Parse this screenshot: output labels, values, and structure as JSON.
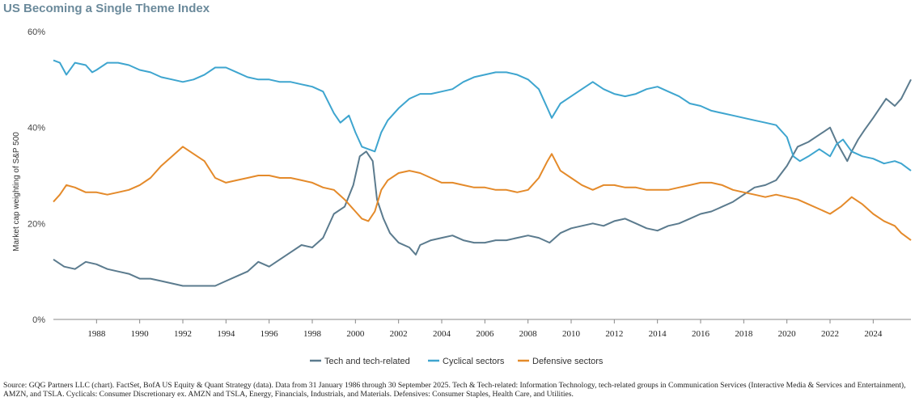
{
  "title": "US Becoming a Single Theme Index",
  "source": "Source: GQG Partners LLC (chart). FactSet, BofA US Equity & Quant Strategy (data). Data from 31 January 1986 through 30 September 2025. Tech & Tech-related: Information Technology, tech-related groups in Communication Services (Interactive Media & Services and Entertainment), AMZN, and TSLA. Cyclicals: Consumer Discretionary ex. AMZN and TSLA, Energy, Financials, Industrials, and Materials. Defensives: Consumer Staples, Health Care, and Utilities.",
  "chart_data": {
    "type": "line",
    "title": "US Becoming a Single Theme Index",
    "ylabel": "Market cap weighting of S&P 500",
    "xlabel": "",
    "ylim": [
      0,
      60
    ],
    "xlim": [
      1986.0,
      2025.75
    ],
    "yticks": [
      "0%",
      "20%",
      "40%",
      "60%"
    ],
    "ytick_values": [
      0,
      20,
      40,
      60
    ],
    "xticks": [
      "1988",
      "1990",
      "1992",
      "1994",
      "1996",
      "1998",
      "2000",
      "2002",
      "2004",
      "2006",
      "2008",
      "2010",
      "2012",
      "2014",
      "2016",
      "2018",
      "2020",
      "2022",
      "2024"
    ],
    "xtick_values": [
      1988,
      1990,
      1992,
      1994,
      1996,
      1998,
      2000,
      2002,
      2004,
      2006,
      2008,
      2010,
      2012,
      2014,
      2016,
      2018,
      2020,
      2022,
      2024
    ],
    "grid": false,
    "legend_position": "bottom-center",
    "series": [
      {
        "name": "Tech and tech-related",
        "color": "#5b7b8e",
        "points": [
          [
            1986.0,
            12.5
          ],
          [
            1986.5,
            11.0
          ],
          [
            1987.0,
            10.5
          ],
          [
            1987.5,
            12.0
          ],
          [
            1988.0,
            11.5
          ],
          [
            1988.5,
            10.5
          ],
          [
            1989.0,
            10.0
          ],
          [
            1989.5,
            9.5
          ],
          [
            1990.0,
            8.5
          ],
          [
            1990.5,
            8.5
          ],
          [
            1991.0,
            8.0
          ],
          [
            1991.5,
            7.5
          ],
          [
            1992.0,
            7.0
          ],
          [
            1992.5,
            7.0
          ],
          [
            1993.0,
            7.0
          ],
          [
            1993.5,
            7.0
          ],
          [
            1994.0,
            8.0
          ],
          [
            1994.5,
            9.0
          ],
          [
            1995.0,
            10.0
          ],
          [
            1995.5,
            12.0
          ],
          [
            1996.0,
            11.0
          ],
          [
            1996.5,
            12.5
          ],
          [
            1997.0,
            14.0
          ],
          [
            1997.5,
            15.5
          ],
          [
            1998.0,
            15.0
          ],
          [
            1998.5,
            17.0
          ],
          [
            1999.0,
            22.0
          ],
          [
            1999.5,
            23.5
          ],
          [
            1999.9,
            28.0
          ],
          [
            2000.2,
            34.0
          ],
          [
            2000.5,
            35.0
          ],
          [
            2000.8,
            33.0
          ],
          [
            2001.0,
            25.0
          ],
          [
            2001.3,
            21.0
          ],
          [
            2001.6,
            18.0
          ],
          [
            2002.0,
            16.0
          ],
          [
            2002.5,
            15.0
          ],
          [
            2002.8,
            13.5
          ],
          [
            2003.0,
            15.5
          ],
          [
            2003.5,
            16.5
          ],
          [
            2004.0,
            17.0
          ],
          [
            2004.5,
            17.5
          ],
          [
            2005.0,
            16.5
          ],
          [
            2005.5,
            16.0
          ],
          [
            2006.0,
            16.0
          ],
          [
            2006.5,
            16.5
          ],
          [
            2007.0,
            16.5
          ],
          [
            2007.5,
            17.0
          ],
          [
            2008.0,
            17.5
          ],
          [
            2008.5,
            17.0
          ],
          [
            2009.0,
            16.0
          ],
          [
            2009.5,
            18.0
          ],
          [
            2010.0,
            19.0
          ],
          [
            2010.5,
            19.5
          ],
          [
            2011.0,
            20.0
          ],
          [
            2011.5,
            19.5
          ],
          [
            2012.0,
            20.5
          ],
          [
            2012.5,
            21.0
          ],
          [
            2013.0,
            20.0
          ],
          [
            2013.5,
            19.0
          ],
          [
            2014.0,
            18.5
          ],
          [
            2014.5,
            19.5
          ],
          [
            2015.0,
            20.0
          ],
          [
            2015.5,
            21.0
          ],
          [
            2016.0,
            22.0
          ],
          [
            2016.5,
            22.5
          ],
          [
            2017.0,
            23.5
          ],
          [
            2017.5,
            24.5
          ],
          [
            2018.0,
            26.0
          ],
          [
            2018.5,
            27.5
          ],
          [
            2019.0,
            28.0
          ],
          [
            2019.5,
            29.0
          ],
          [
            2020.0,
            32.0
          ],
          [
            2020.5,
            36.0
          ],
          [
            2021.0,
            37.0
          ],
          [
            2021.5,
            38.5
          ],
          [
            2022.0,
            40.0
          ],
          [
            2022.3,
            37.0
          ],
          [
            2022.8,
            33.0
          ],
          [
            2023.0,
            35.0
          ],
          [
            2023.3,
            37.5
          ],
          [
            2023.6,
            39.5
          ],
          [
            2024.0,
            42.0
          ],
          [
            2024.3,
            44.0
          ],
          [
            2024.6,
            46.0
          ],
          [
            2025.0,
            44.5
          ],
          [
            2025.3,
            46.0
          ],
          [
            2025.75,
            50.0
          ]
        ]
      },
      {
        "name": "Cyclical sectors",
        "color": "#3ea5cf",
        "points": [
          [
            1986.0,
            54.0
          ],
          [
            1986.3,
            53.5
          ],
          [
            1986.6,
            51.0
          ],
          [
            1987.0,
            53.5
          ],
          [
            1987.5,
            53.0
          ],
          [
            1987.8,
            51.5
          ],
          [
            1988.0,
            52.0
          ],
          [
            1988.5,
            53.5
          ],
          [
            1989.0,
            53.5
          ],
          [
            1989.5,
            53.0
          ],
          [
            1990.0,
            52.0
          ],
          [
            1990.5,
            51.5
          ],
          [
            1991.0,
            50.5
          ],
          [
            1991.5,
            50.0
          ],
          [
            1992.0,
            49.5
          ],
          [
            1992.5,
            50.0
          ],
          [
            1993.0,
            51.0
          ],
          [
            1993.5,
            52.5
          ],
          [
            1994.0,
            52.5
          ],
          [
            1994.5,
            51.5
          ],
          [
            1995.0,
            50.5
          ],
          [
            1995.5,
            50.0
          ],
          [
            1996.0,
            50.0
          ],
          [
            1996.5,
            49.5
          ],
          [
            1997.0,
            49.5
          ],
          [
            1997.5,
            49.0
          ],
          [
            1998.0,
            48.5
          ],
          [
            1998.5,
            47.5
          ],
          [
            1999.0,
            43.0
          ],
          [
            1999.3,
            41.0
          ],
          [
            1999.7,
            42.5
          ],
          [
            2000.0,
            39.0
          ],
          [
            2000.3,
            36.0
          ],
          [
            2000.6,
            35.5
          ],
          [
            2000.9,
            35.0
          ],
          [
            2001.2,
            39.0
          ],
          [
            2001.5,
            41.5
          ],
          [
            2002.0,
            44.0
          ],
          [
            2002.5,
            46.0
          ],
          [
            2003.0,
            47.0
          ],
          [
            2003.5,
            47.0
          ],
          [
            2004.0,
            47.5
          ],
          [
            2004.5,
            48.0
          ],
          [
            2005.0,
            49.5
          ],
          [
            2005.5,
            50.5
          ],
          [
            2006.0,
            51.0
          ],
          [
            2006.5,
            51.5
          ],
          [
            2007.0,
            51.5
          ],
          [
            2007.5,
            51.0
          ],
          [
            2008.0,
            50.0
          ],
          [
            2008.5,
            48.0
          ],
          [
            2008.9,
            44.0
          ],
          [
            2009.1,
            42.0
          ],
          [
            2009.5,
            45.0
          ],
          [
            2010.0,
            46.5
          ],
          [
            2010.5,
            48.0
          ],
          [
            2011.0,
            49.5
          ],
          [
            2011.5,
            48.0
          ],
          [
            2012.0,
            47.0
          ],
          [
            2012.5,
            46.5
          ],
          [
            2013.0,
            47.0
          ],
          [
            2013.5,
            48.0
          ],
          [
            2014.0,
            48.5
          ],
          [
            2014.5,
            47.5
          ],
          [
            2015.0,
            46.5
          ],
          [
            2015.5,
            45.0
          ],
          [
            2016.0,
            44.5
          ],
          [
            2016.5,
            43.5
          ],
          [
            2017.0,
            43.0
          ],
          [
            2017.5,
            42.5
          ],
          [
            2018.0,
            42.0
          ],
          [
            2018.5,
            41.5
          ],
          [
            2019.0,
            41.0
          ],
          [
            2019.5,
            40.5
          ],
          [
            2020.0,
            38.0
          ],
          [
            2020.3,
            34.0
          ],
          [
            2020.6,
            33.0
          ],
          [
            2021.0,
            34.0
          ],
          [
            2021.5,
            35.5
          ],
          [
            2022.0,
            34.0
          ],
          [
            2022.3,
            36.5
          ],
          [
            2022.6,
            37.5
          ],
          [
            2023.0,
            35.0
          ],
          [
            2023.5,
            34.0
          ],
          [
            2024.0,
            33.5
          ],
          [
            2024.5,
            32.5
          ],
          [
            2025.0,
            33.0
          ],
          [
            2025.3,
            32.5
          ],
          [
            2025.75,
            31.0
          ]
        ]
      },
      {
        "name": "Defensive sectors",
        "color": "#e48a2a",
        "points": [
          [
            1986.0,
            24.5
          ],
          [
            1986.3,
            26.0
          ],
          [
            1986.6,
            28.0
          ],
          [
            1987.0,
            27.5
          ],
          [
            1987.5,
            26.5
          ],
          [
            1988.0,
            26.5
          ],
          [
            1988.5,
            26.0
          ],
          [
            1989.0,
            26.5
          ],
          [
            1989.5,
            27.0
          ],
          [
            1990.0,
            28.0
          ],
          [
            1990.5,
            29.5
          ],
          [
            1991.0,
            32.0
          ],
          [
            1991.5,
            34.0
          ],
          [
            1992.0,
            36.0
          ],
          [
            1992.5,
            34.5
          ],
          [
            1993.0,
            33.0
          ],
          [
            1993.5,
            29.5
          ],
          [
            1994.0,
            28.5
          ],
          [
            1994.5,
            29.0
          ],
          [
            1995.0,
            29.5
          ],
          [
            1995.5,
            30.0
          ],
          [
            1996.0,
            30.0
          ],
          [
            1996.5,
            29.5
          ],
          [
            1997.0,
            29.5
          ],
          [
            1997.5,
            29.0
          ],
          [
            1998.0,
            28.5
          ],
          [
            1998.5,
            27.5
          ],
          [
            1999.0,
            27.0
          ],
          [
            1999.5,
            25.0
          ],
          [
            2000.0,
            22.5
          ],
          [
            2000.3,
            21.0
          ],
          [
            2000.6,
            20.5
          ],
          [
            2000.9,
            22.5
          ],
          [
            2001.2,
            27.0
          ],
          [
            2001.5,
            29.0
          ],
          [
            2002.0,
            30.5
          ],
          [
            2002.5,
            31.0
          ],
          [
            2003.0,
            30.5
          ],
          [
            2003.5,
            29.5
          ],
          [
            2004.0,
            28.5
          ],
          [
            2004.5,
            28.5
          ],
          [
            2005.0,
            28.0
          ],
          [
            2005.5,
            27.5
          ],
          [
            2006.0,
            27.5
          ],
          [
            2006.5,
            27.0
          ],
          [
            2007.0,
            27.0
          ],
          [
            2007.5,
            26.5
          ],
          [
            2008.0,
            27.0
          ],
          [
            2008.5,
            29.5
          ],
          [
            2008.9,
            33.0
          ],
          [
            2009.1,
            34.5
          ],
          [
            2009.5,
            31.0
          ],
          [
            2010.0,
            29.5
          ],
          [
            2010.5,
            28.0
          ],
          [
            2011.0,
            27.0
          ],
          [
            2011.5,
            28.0
          ],
          [
            2012.0,
            28.0
          ],
          [
            2012.5,
            27.5
          ],
          [
            2013.0,
            27.5
          ],
          [
            2013.5,
            27.0
          ],
          [
            2014.0,
            27.0
          ],
          [
            2014.5,
            27.0
          ],
          [
            2015.0,
            27.5
          ],
          [
            2015.5,
            28.0
          ],
          [
            2016.0,
            28.5
          ],
          [
            2016.5,
            28.5
          ],
          [
            2017.0,
            28.0
          ],
          [
            2017.5,
            27.0
          ],
          [
            2018.0,
            26.5
          ],
          [
            2018.5,
            26.0
          ],
          [
            2019.0,
            25.5
          ],
          [
            2019.5,
            26.0
          ],
          [
            2020.0,
            25.5
          ],
          [
            2020.5,
            25.0
          ],
          [
            2021.0,
            24.0
          ],
          [
            2021.5,
            23.0
          ],
          [
            2022.0,
            22.0
          ],
          [
            2022.5,
            23.5
          ],
          [
            2023.0,
            25.5
          ],
          [
            2023.5,
            24.0
          ],
          [
            2024.0,
            22.0
          ],
          [
            2024.5,
            20.5
          ],
          [
            2025.0,
            19.5
          ],
          [
            2025.3,
            18.0
          ],
          [
            2025.75,
            16.5
          ]
        ]
      }
    ]
  }
}
